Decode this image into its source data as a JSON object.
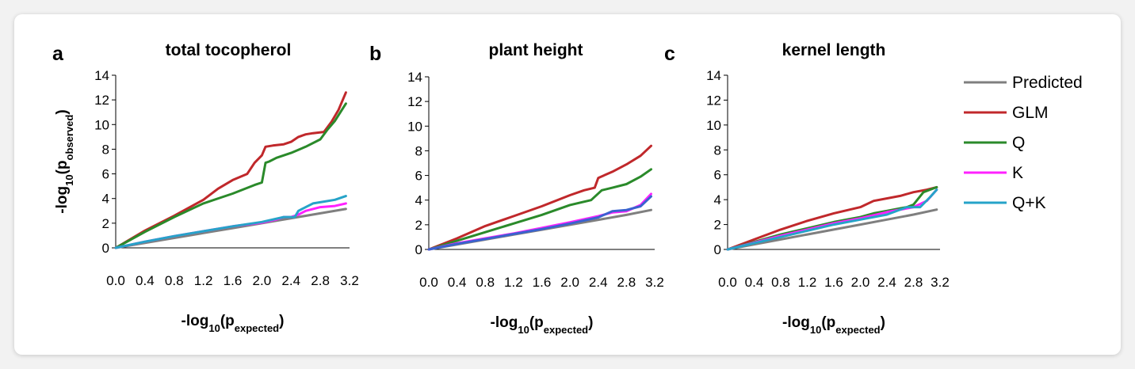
{
  "chart_data": [
    {
      "type": "line",
      "panel_letter": "a",
      "title": "total tocopherol",
      "xlabel": "-log10(pexpected)",
      "ylabel": "-log10(pobserved)",
      "xlim": [
        0,
        3.2
      ],
      "ylim": [
        0,
        14
      ],
      "xticks": [
        "0.0",
        "0.4",
        "0.8",
        "1.2",
        "1.6",
        "2.0",
        "2.4",
        "2.8",
        "3.2"
      ],
      "yticks": [
        "0",
        "2",
        "4",
        "6",
        "8",
        "10",
        "12",
        "14"
      ],
      "series": [
        {
          "name": "Predicted",
          "color": "#7f7f7f",
          "x": [
            0,
            0.4,
            0.8,
            1.2,
            1.6,
            2.0,
            2.4,
            2.8,
            3.15
          ],
          "y": [
            0,
            0.4,
            0.8,
            1.2,
            1.6,
            2.0,
            2.4,
            2.8,
            3.15
          ]
        },
        {
          "name": "GLM",
          "color": "#c0282b",
          "x": [
            0,
            0.4,
            0.8,
            1.2,
            1.4,
            1.6,
            1.8,
            1.9,
            2.0,
            2.05,
            2.15,
            2.3,
            2.4,
            2.5,
            2.6,
            2.7,
            2.85,
            2.95,
            3.05,
            3.15
          ],
          "y": [
            0,
            1.4,
            2.6,
            3.9,
            4.8,
            5.5,
            6.0,
            6.9,
            7.5,
            8.2,
            8.3,
            8.4,
            8.6,
            9.0,
            9.2,
            9.3,
            9.4,
            10.2,
            11.2,
            12.6
          ]
        },
        {
          "name": "Q",
          "color": "#2a8a2a",
          "x": [
            0,
            0.4,
            0.8,
            1.2,
            1.6,
            1.9,
            2.0,
            2.05,
            2.1,
            2.2,
            2.4,
            2.6,
            2.8,
            2.9,
            3.0,
            3.15
          ],
          "y": [
            0,
            1.3,
            2.5,
            3.6,
            4.4,
            5.1,
            5.3,
            6.9,
            7.0,
            7.3,
            7.7,
            8.2,
            8.8,
            9.6,
            10.3,
            11.7
          ]
        },
        {
          "name": "K",
          "color": "#ff21ff",
          "x": [
            0,
            0.4,
            0.8,
            1.2,
            1.6,
            2.0,
            2.2,
            2.3,
            2.4,
            2.5,
            2.6,
            2.8,
            3.0,
            3.15
          ],
          "y": [
            0,
            0.5,
            0.95,
            1.35,
            1.75,
            2.05,
            2.3,
            2.5,
            2.5,
            2.7,
            3.0,
            3.3,
            3.4,
            3.6
          ]
        },
        {
          "name": "Q+K",
          "color": "#26a3c8",
          "x": [
            0,
            0.4,
            0.8,
            1.2,
            1.6,
            2.0,
            2.3,
            2.45,
            2.5,
            2.6,
            2.7,
            2.8,
            3.0,
            3.15
          ],
          "y": [
            0,
            0.5,
            0.95,
            1.35,
            1.75,
            2.1,
            2.5,
            2.5,
            3.0,
            3.3,
            3.6,
            3.7,
            3.9,
            4.2
          ]
        }
      ]
    },
    {
      "type": "line",
      "panel_letter": "b",
      "title": "plant height",
      "xlabel": "-log10(pexpected)",
      "ylabel": "",
      "xlim": [
        0,
        3.2
      ],
      "ylim": [
        0,
        14
      ],
      "xticks": [
        "0.0",
        "0.4",
        "0.8",
        "1.2",
        "1.6",
        "2.0",
        "2.4",
        "2.8",
        "3.2"
      ],
      "yticks": [
        "0",
        "2",
        "4",
        "6",
        "8",
        "10",
        "12",
        "14"
      ],
      "series": [
        {
          "name": "Predicted",
          "color": "#7f7f7f",
          "x": [
            0,
            0.4,
            0.8,
            1.2,
            1.6,
            2.0,
            2.4,
            2.8,
            3.15
          ],
          "y": [
            0,
            0.4,
            0.8,
            1.2,
            1.6,
            2.0,
            2.4,
            2.8,
            3.2
          ]
        },
        {
          "name": "GLM",
          "color": "#c0282b",
          "x": [
            0,
            0.4,
            0.8,
            1.2,
            1.6,
            2.0,
            2.2,
            2.35,
            2.4,
            2.6,
            2.8,
            3.0,
            3.15
          ],
          "y": [
            0,
            0.9,
            1.9,
            2.7,
            3.5,
            4.4,
            4.8,
            5.0,
            5.8,
            6.3,
            6.9,
            7.6,
            8.4
          ]
        },
        {
          "name": "Q",
          "color": "#2a8a2a",
          "x": [
            0,
            0.4,
            0.8,
            1.2,
            1.6,
            2.0,
            2.3,
            2.45,
            2.6,
            2.8,
            3.0,
            3.15
          ],
          "y": [
            0,
            0.7,
            1.4,
            2.1,
            2.8,
            3.6,
            4.0,
            4.8,
            5.0,
            5.3,
            5.9,
            6.5
          ]
        },
        {
          "name": "K",
          "color": "#ff21ff",
          "x": [
            0,
            0.4,
            0.8,
            1.2,
            1.6,
            2.0,
            2.4,
            2.6,
            2.8,
            3.0,
            3.15
          ],
          "y": [
            0,
            0.5,
            0.9,
            1.3,
            1.75,
            2.2,
            2.7,
            3.0,
            3.1,
            3.6,
            4.5
          ]
        },
        {
          "name": "Q+K",
          "color": "#3a62cf",
          "x": [
            0,
            0.4,
            0.8,
            1.2,
            1.6,
            2.0,
            2.4,
            2.6,
            2.8,
            3.0,
            3.15
          ],
          "y": [
            0,
            0.45,
            0.85,
            1.25,
            1.65,
            2.1,
            2.6,
            3.1,
            3.2,
            3.5,
            4.3
          ]
        }
      ]
    },
    {
      "type": "line",
      "panel_letter": "c",
      "title": "kernel length",
      "xlabel": "-log10(pexpected)",
      "ylabel": "",
      "xlim": [
        0,
        3.2
      ],
      "ylim": [
        0,
        14
      ],
      "xticks": [
        "0.0",
        "0.4",
        "0.8",
        "1.2",
        "1.6",
        "2.0",
        "2.4",
        "2.8",
        "3.2"
      ],
      "yticks": [
        "0",
        "2",
        "4",
        "6",
        "8",
        "10",
        "12",
        "14"
      ],
      "series": [
        {
          "name": "Predicted",
          "color": "#7f7f7f",
          "x": [
            0,
            0.4,
            0.8,
            1.2,
            1.6,
            2.0,
            2.4,
            2.8,
            3.15
          ],
          "y": [
            0,
            0.4,
            0.8,
            1.2,
            1.6,
            2.0,
            2.4,
            2.8,
            3.2
          ]
        },
        {
          "name": "GLM",
          "color": "#c0282b",
          "x": [
            0,
            0.4,
            0.8,
            1.2,
            1.6,
            2.0,
            2.2,
            2.6,
            2.8,
            3.0,
            3.15
          ],
          "y": [
            0,
            0.8,
            1.6,
            2.3,
            2.9,
            3.4,
            3.9,
            4.3,
            4.6,
            4.8,
            5.0
          ]
        },
        {
          "name": "Q",
          "color": "#2a8a2a",
          "x": [
            0,
            0.4,
            0.8,
            1.2,
            1.6,
            2.0,
            2.2,
            2.4,
            2.6,
            2.7,
            2.8,
            2.95,
            3.15
          ],
          "y": [
            0,
            0.6,
            1.2,
            1.7,
            2.2,
            2.6,
            2.9,
            3.1,
            3.3,
            3.4,
            3.6,
            4.6,
            5.0
          ]
        },
        {
          "name": "K",
          "color": "#ff21ff",
          "x": [
            0,
            0.4,
            0.8,
            1.2,
            1.6,
            2.0,
            2.4,
            2.8,
            3.0,
            3.15
          ],
          "y": [
            0,
            0.55,
            1.1,
            1.6,
            2.1,
            2.5,
            3.0,
            3.4,
            3.9,
            4.8
          ]
        },
        {
          "name": "Q+K",
          "color": "#26a3c8",
          "x": [
            0,
            0.4,
            0.8,
            1.2,
            1.6,
            2.0,
            2.4,
            2.7,
            2.9,
            3.05,
            3.15
          ],
          "y": [
            0,
            0.5,
            1.0,
            1.5,
            2.0,
            2.4,
            2.8,
            3.4,
            3.4,
            4.2,
            4.8
          ]
        }
      ]
    }
  ],
  "legend": {
    "entries": [
      {
        "name": "Predicted",
        "color": "#7f7f7f"
      },
      {
        "name": "GLM",
        "color": "#c0282b"
      },
      {
        "name": "Q",
        "color": "#2a8a2a"
      },
      {
        "name": "K",
        "color": "#ff21ff"
      },
      {
        "name": "Q+K",
        "color": "#26a3c8"
      }
    ]
  }
}
